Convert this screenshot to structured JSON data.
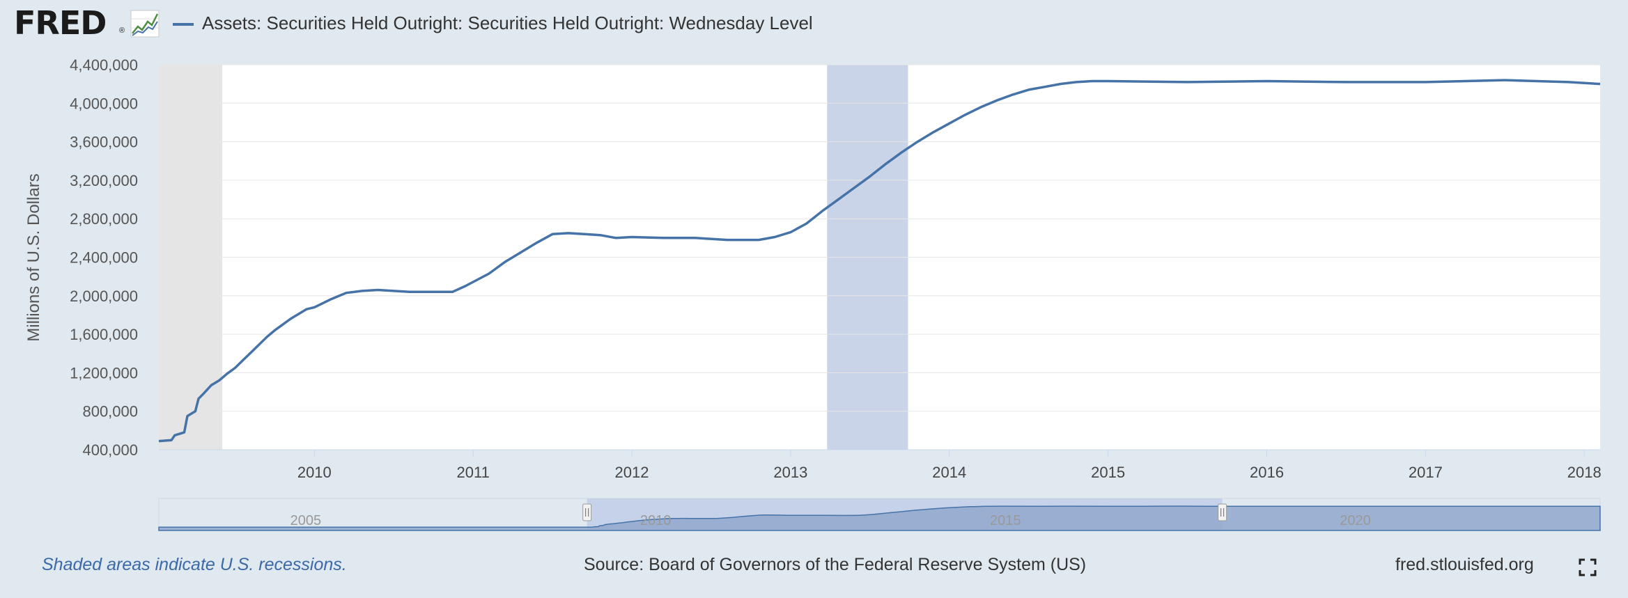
{
  "header": {
    "logo_text": "FRED",
    "logo_registered": "®",
    "series_title": "Assets: Securities Held Outright: Securities Held Outright: Wednesday Level"
  },
  "footer": {
    "recession_note": "Shaded areas indicate U.S. recessions.",
    "source": "Source: Board of Governors of the Federal Reserve System (US)",
    "site": "fred.stlouisfed.org"
  },
  "colors": {
    "background": "#e1e9f0",
    "series": "#4572a7",
    "recession": "#e5e5e5",
    "navigator_highlight": "#c6d2ea",
    "navigator_fill": "#91a8cc"
  },
  "icons": {
    "logo_graph": "fred-graph-icon",
    "fullscreen": "fullscreen-icon"
  },
  "chart_data": {
    "type": "line",
    "title": "Assets: Securities Held Outright: Securities Held Outright: Wednesday Level",
    "xlabel": "",
    "ylabel": "Millions of U.S. Dollars",
    "xlim": [
      2009.02,
      2018.1
    ],
    "ylim": [
      400000,
      4400000
    ],
    "x_ticks": [
      2010,
      2011,
      2012,
      2013,
      2014,
      2015,
      2016,
      2017,
      2018
    ],
    "x_tick_labels": [
      "2010",
      "2011",
      "2012",
      "2013",
      "2014",
      "2015",
      "2016",
      "2017",
      "2018"
    ],
    "y_ticks": [
      400000,
      800000,
      1200000,
      1600000,
      2000000,
      2400000,
      2800000,
      3200000,
      3600000,
      4000000,
      4400000
    ],
    "y_tick_labels": [
      "400,000",
      "800,000",
      "1,200,000",
      "1,600,000",
      "2,000,000",
      "2,400,000",
      "2,800,000",
      "3,200,000",
      "3,600,000",
      "4,000,000",
      "4,400,000"
    ],
    "grid": true,
    "legend": "top-left",
    "recessions": [
      [
        2009.02,
        2009.42
      ]
    ],
    "highlight_bands": [
      [
        2013.23,
        2013.74
      ]
    ],
    "series": [
      {
        "name": "Assets: Securities Held Outright: Securities Held Outright: Wednesday Level",
        "x": [
          2009.02,
          2009.1,
          2009.12,
          2009.18,
          2009.2,
          2009.25,
          2009.27,
          2009.3,
          2009.35,
          2009.4,
          2009.45,
          2009.5,
          2009.55,
          2009.6,
          2009.65,
          2009.7,
          2009.75,
          2009.8,
          2009.85,
          2009.9,
          2009.95,
          2010.0,
          2010.1,
          2010.2,
          2010.3,
          2010.4,
          2010.5,
          2010.6,
          2010.7,
          2010.8,
          2010.87,
          2010.95,
          2011.1,
          2011.2,
          2011.3,
          2011.4,
          2011.5,
          2011.6,
          2011.7,
          2011.8,
          2011.9,
          2012.0,
          2012.2,
          2012.4,
          2012.6,
          2012.8,
          2012.9,
          2013.0,
          2013.1,
          2013.2,
          2013.3,
          2013.4,
          2013.5,
          2013.6,
          2013.7,
          2013.8,
          2013.9,
          2014.0,
          2014.1,
          2014.2,
          2014.3,
          2014.4,
          2014.5,
          2014.6,
          2014.7,
          2014.8,
          2014.9,
          2015.0,
          2015.5,
          2016.0,
          2016.5,
          2017.0,
          2017.5,
          2017.9,
          2018.1
        ],
        "values": [
          490000,
          500000,
          550000,
          580000,
          750000,
          800000,
          930000,
          980000,
          1070000,
          1120000,
          1190000,
          1250000,
          1330000,
          1410000,
          1490000,
          1570000,
          1640000,
          1700000,
          1760000,
          1810000,
          1860000,
          1880000,
          1960000,
          2030000,
          2050000,
          2060000,
          2050000,
          2040000,
          2040000,
          2040000,
          2040000,
          2100000,
          2230000,
          2350000,
          2450000,
          2550000,
          2640000,
          2650000,
          2640000,
          2630000,
          2600000,
          2610000,
          2600000,
          2600000,
          2580000,
          2580000,
          2610000,
          2660000,
          2750000,
          2880000,
          3000000,
          3120000,
          3240000,
          3370000,
          3490000,
          3600000,
          3700000,
          3790000,
          3880000,
          3960000,
          4030000,
          4090000,
          4140000,
          4170000,
          4200000,
          4220000,
          4230000,
          4230000,
          4220000,
          4230000,
          4220000,
          4220000,
          4240000,
          4220000,
          4200000
        ]
      }
    ],
    "navigator": {
      "x_tick_labels": [
        "2005",
        "2010",
        "2015",
        "2020"
      ],
      "x_ticks": [
        2005,
        2010,
        2015,
        2020
      ],
      "range": [
        2002.9,
        2023.5
      ],
      "selected": [
        2009.02,
        2018.1
      ]
    }
  }
}
